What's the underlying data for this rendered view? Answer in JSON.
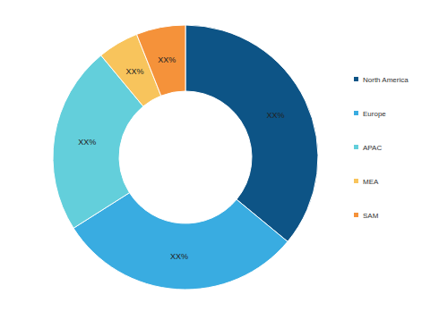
{
  "chart_data": {
    "type": "donut",
    "categories": [
      "North America",
      "Europe",
      "APAC",
      "MEA",
      "SAM"
    ],
    "values": [
      36,
      30,
      23,
      5,
      6
    ],
    "value_labels": [
      "XX%",
      "XX%",
      "XX%",
      "XX%",
      "XX%"
    ],
    "colors": [
      "#0d5486",
      "#39ace1",
      "#63cfdb",
      "#f8c45c",
      "#f5923a"
    ],
    "data_labels": true,
    "legend": "right"
  }
}
